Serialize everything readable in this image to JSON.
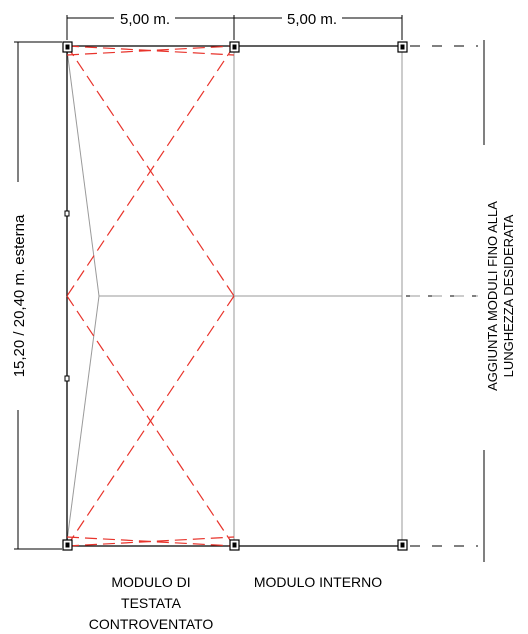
{
  "dimensions": {
    "module_width_1": "5,00 m.",
    "module_width_2": "5,00 m.",
    "overall_length": "15,20 / 20,40 m. esterna"
  },
  "annotations": {
    "extension_line1": "AGGIUNTA MODULI FINO ALLA",
    "extension_line2": "LUNGHEZZA DESIDERATA"
  },
  "captions": {
    "end_module_line1": "MODULO DI",
    "end_module_line2": "TESTATA",
    "end_module_line3": "CONTROVENTATO",
    "inner_module": "MODULO INTERNO"
  },
  "colors": {
    "structure": "#000000",
    "bracing": "#e8332b",
    "secondary": "#9a9a9a"
  }
}
